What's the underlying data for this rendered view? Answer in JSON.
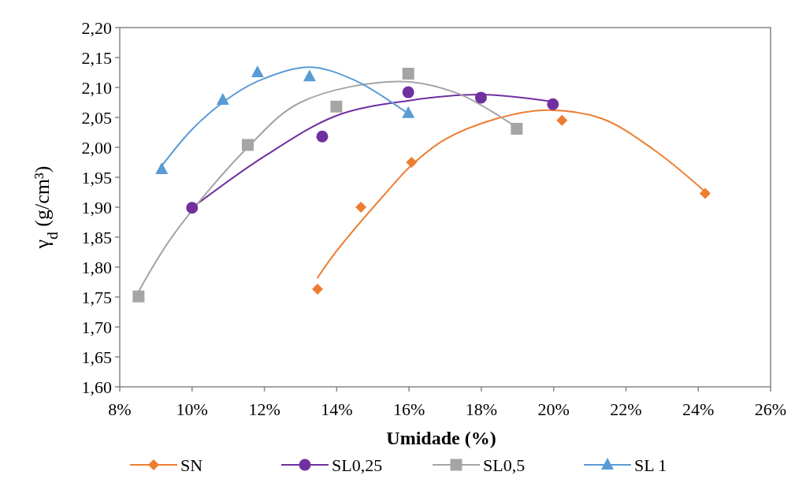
{
  "chart_data": {
    "type": "scatter",
    "xlabel": "Umidade (%)",
    "ylabel": "γ$_{d}$ (g/cm³)",
    "xlim": [
      8,
      26
    ],
    "ylim": [
      1.6,
      2.2
    ],
    "xticks": [
      {
        "value": 8,
        "label": "8%"
      },
      {
        "value": 10,
        "label": "10%"
      },
      {
        "value": 12,
        "label": "12%"
      },
      {
        "value": 14,
        "label": "14%"
      },
      {
        "value": 16,
        "label": "16%"
      },
      {
        "value": 18,
        "label": "18%"
      },
      {
        "value": 20,
        "label": "20%"
      },
      {
        "value": 22,
        "label": "22%"
      },
      {
        "value": 24,
        "label": "24%"
      },
      {
        "value": 26,
        "label": "26%"
      }
    ],
    "yticks": [
      {
        "value": 1.6,
        "label": "1,60"
      },
      {
        "value": 1.65,
        "label": "1,65"
      },
      {
        "value": 1.7,
        "label": "1,70"
      },
      {
        "value": 1.75,
        "label": "1,75"
      },
      {
        "value": 1.8,
        "label": "1,80"
      },
      {
        "value": 1.85,
        "label": "1,85"
      },
      {
        "value": 1.9,
        "label": "1,90"
      },
      {
        "value": 1.95,
        "label": "1,95"
      },
      {
        "value": 2.0,
        "label": "2,00"
      },
      {
        "value": 2.05,
        "label": "2,05"
      },
      {
        "value": 2.1,
        "label": "2,10"
      },
      {
        "value": 2.15,
        "label": "2,15"
      },
      {
        "value": 2.2,
        "label": "2,20"
      }
    ],
    "grid": false,
    "legend": "bottom",
    "series": [
      {
        "type": "line",
        "color": "#ed7d31",
        "x": [
          13.47,
          14.0,
          15.54,
          16.05,
          16.99,
          18.43,
          19.74,
          21.33,
          22.77,
          24.15
        ],
        "values": [
          1.782,
          1.827,
          1.936,
          1.969,
          2.013,
          2.048,
          2.062,
          2.048,
          1.996,
          1.928
        ]
      },
      {
        "type": "line",
        "color": "#7030a0",
        "x": [
          10.0,
          12.0,
          14.0,
          16.0,
          18.0,
          19.98
        ],
        "values": [
          1.899,
          1.985,
          2.053,
          2.078,
          2.088,
          2.076
        ]
      },
      {
        "type": "line",
        "color": "#a5a5a5",
        "x": [
          8.52,
          9.5,
          11.54,
          13.0,
          15.69,
          17.35,
          18.98
        ],
        "values": [
          1.759,
          1.855,
          2.0,
          2.075,
          2.11,
          2.09,
          2.033
        ]
      },
      {
        "type": "line",
        "color": "#5b9bd5",
        "x": [
          9.16,
          10.0,
          10.85,
          11.8,
          13.23,
          14.5,
          15.91
        ],
        "values": [
          1.969,
          2.03,
          2.075,
          2.11,
          2.134,
          2.112,
          2.059
        ]
      },
      {
        "name": "SN",
        "marker": "diamond",
        "color": "#ed7d31",
        "x": [
          13.47,
          14.67,
          16.07,
          20.23,
          24.19
        ],
        "values": [
          1.763,
          1.9,
          1.975,
          2.045,
          1.923
        ]
      },
      {
        "name": "SL0,25",
        "marker": "circle",
        "color": "#7030a0",
        "x": [
          10.0,
          13.6,
          15.98,
          17.99,
          19.98
        ],
        "values": [
          1.899,
          2.018,
          2.092,
          2.083,
          2.072
        ]
      },
      {
        "name": "SL0,5",
        "marker": "square",
        "color": "#a5a5a5",
        "x": [
          8.52,
          11.54,
          13.99,
          15.98,
          18.98
        ],
        "values": [
          1.751,
          2.004,
          2.068,
          2.123,
          2.031
        ]
      },
      {
        "name": "SL 1",
        "marker": "triangle",
        "color": "#5b9bd5",
        "x": [
          9.16,
          10.85,
          11.81,
          13.25,
          15.98
        ],
        "values": [
          1.963,
          2.079,
          2.125,
          2.118,
          2.057
        ]
      }
    ]
  }
}
